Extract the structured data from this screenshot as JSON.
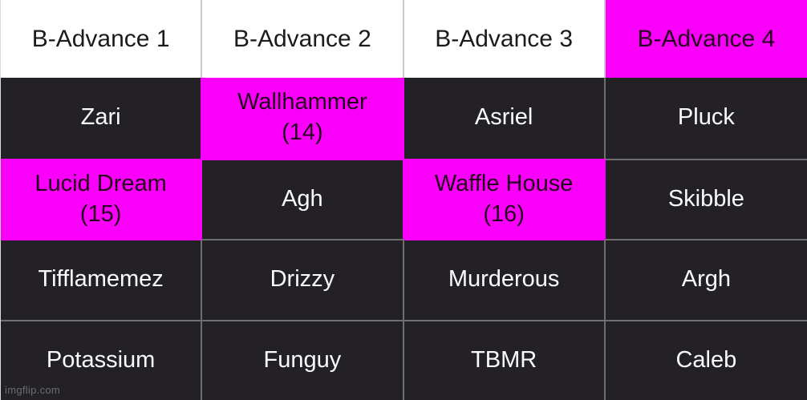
{
  "chart_data": {
    "type": "table",
    "title": "",
    "columns": [
      "B-Advance 1",
      "B-Advance 2",
      "B-Advance 3",
      "B-Advance 4"
    ],
    "rows": [
      [
        "Zari",
        "Wallhammer\n(14)",
        "Asriel",
        "Pluck"
      ],
      [
        "Lucid Dream\n(15)",
        "Agh",
        "Waffle House\n(16)",
        "Skibble"
      ],
      [
        "Tifflamemez",
        "Drizzy",
        "Murderous",
        "Argh"
      ],
      [
        "Potassium",
        "Funguy",
        "TBMR",
        "Caleb"
      ]
    ],
    "highlighted_cells": [
      {
        "cell": "header-col-4",
        "label": "B-Advance 4"
      },
      {
        "cell": "row-1-col-2",
        "label": "Wallhammer (14)"
      },
      {
        "cell": "row-2-col-1",
        "label": "Lucid Dream (15)"
      },
      {
        "cell": "row-2-col-3",
        "label": "Waffle House (16)"
      }
    ],
    "layout_hints": {
      "grid": "4 columns x 5 rows",
      "header_background": "#ffffff",
      "cell_background": "#232126",
      "highlight_background": "#fa00fa",
      "grid_line_color": "#6f6f6f"
    }
  },
  "colors": {
    "highlight": "#fa00fa",
    "cell_dark": "#232126",
    "header_white": "#ffffff",
    "grid_line": "#6f6f6f",
    "text_light": "#fbfbfb",
    "text_dark": "#1b1b1b",
    "watermark": "#6d6d6d"
  },
  "watermark": "imgflip.com"
}
